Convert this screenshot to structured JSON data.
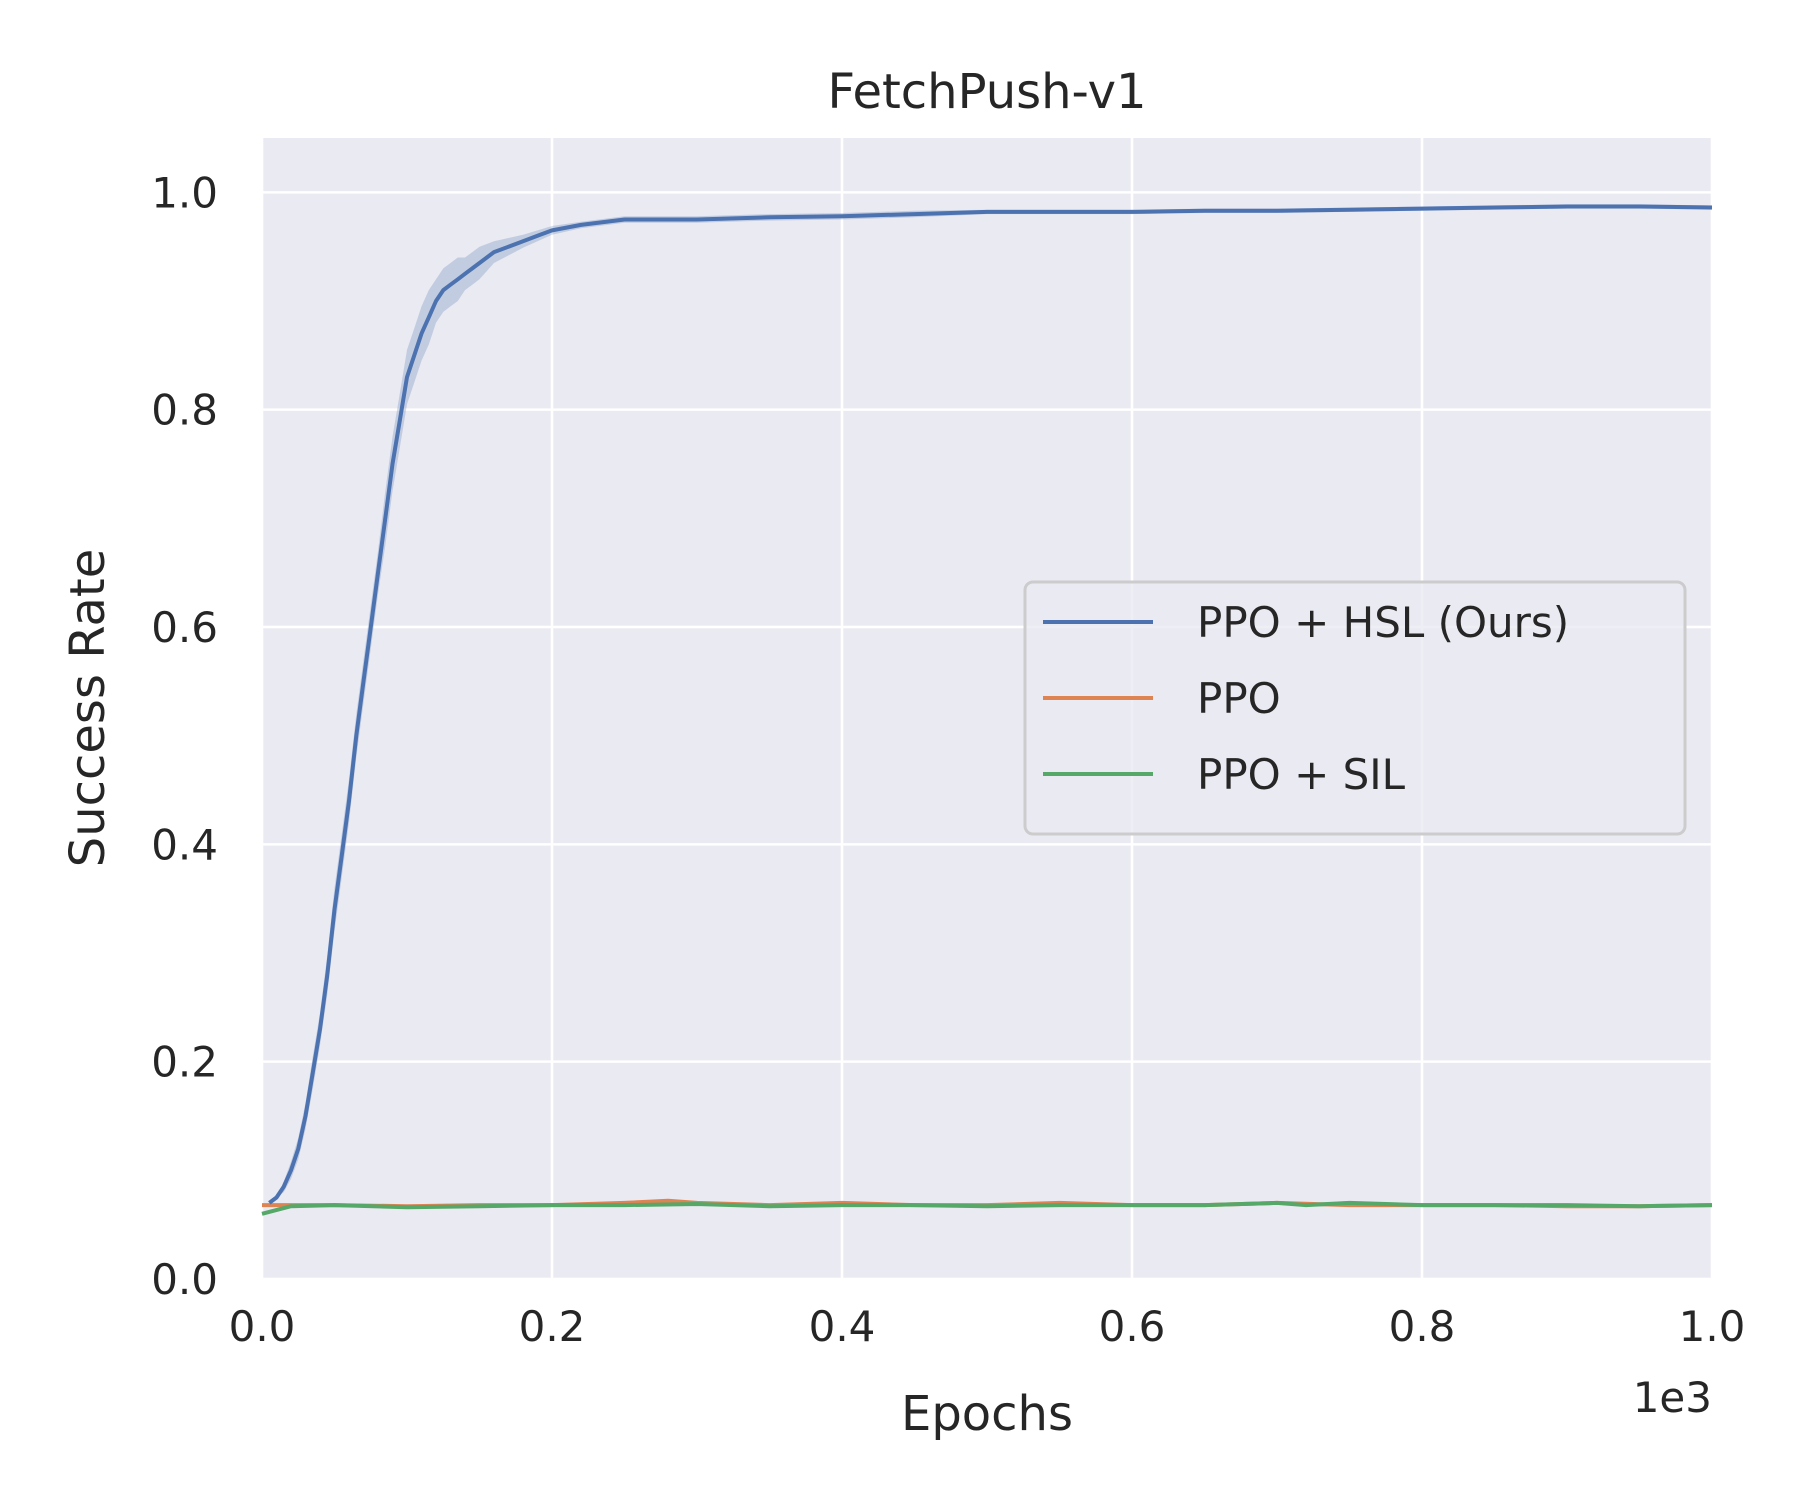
{
  "chart_data": {
    "type": "line",
    "title": "FetchPush-v1",
    "xlabel": "Epochs",
    "ylabel": "Success Rate",
    "x_offset_label": "1e3",
    "xlim": [
      0,
      1.0
    ],
    "ylim": [
      0,
      1.05
    ],
    "x_ticks": [
      0.0,
      0.2,
      0.4,
      0.6,
      0.8,
      1.0
    ],
    "x_tick_labels": [
      "0.0",
      "0.2",
      "0.4",
      "0.6",
      "0.8",
      "1.0"
    ],
    "y_ticks": [
      0.0,
      0.2,
      0.4,
      0.6,
      0.8,
      1.0
    ],
    "y_tick_labels": [
      "0.0",
      "0.2",
      "0.4",
      "0.6",
      "0.8",
      "1.0"
    ],
    "grid": true,
    "legend_position": "center-right",
    "background_color": "#eaeaf2",
    "series": [
      {
        "name": "PPO + HSL (Ours)",
        "color": "#4c72b0",
        "x": [
          0.005,
          0.01,
          0.015,
          0.02,
          0.025,
          0.03,
          0.035,
          0.04,
          0.045,
          0.05,
          0.055,
          0.06,
          0.065,
          0.07,
          0.075,
          0.08,
          0.085,
          0.09,
          0.095,
          0.1,
          0.105,
          0.11,
          0.115,
          0.12,
          0.125,
          0.13,
          0.135,
          0.14,
          0.145,
          0.15,
          0.16,
          0.17,
          0.18,
          0.19,
          0.2,
          0.22,
          0.25,
          0.28,
          0.3,
          0.35,
          0.4,
          0.45,
          0.5,
          0.55,
          0.6,
          0.65,
          0.7,
          0.75,
          0.8,
          0.85,
          0.9,
          0.95,
          1.0
        ],
        "y": [
          0.07,
          0.075,
          0.085,
          0.1,
          0.12,
          0.15,
          0.19,
          0.23,
          0.28,
          0.34,
          0.39,
          0.44,
          0.5,
          0.55,
          0.6,
          0.65,
          0.7,
          0.75,
          0.79,
          0.83,
          0.85,
          0.87,
          0.885,
          0.9,
          0.91,
          0.915,
          0.92,
          0.925,
          0.93,
          0.935,
          0.945,
          0.95,
          0.955,
          0.96,
          0.965,
          0.97,
          0.975,
          0.975,
          0.975,
          0.977,
          0.978,
          0.98,
          0.982,
          0.982,
          0.982,
          0.983,
          0.983,
          0.984,
          0.985,
          0.986,
          0.987,
          0.987,
          0.986
        ],
        "band_halfwidth": [
          0.0,
          0.0,
          0.005,
          0.008,
          0.01,
          0.012,
          0.015,
          0.015,
          0.018,
          0.02,
          0.02,
          0.02,
          0.02,
          0.02,
          0.02,
          0.02,
          0.025,
          0.025,
          0.025,
          0.025,
          0.025,
          0.025,
          0.025,
          0.02,
          0.02,
          0.02,
          0.02,
          0.015,
          0.015,
          0.015,
          0.01,
          0.008,
          0.006,
          0.005,
          0.004,
          0.003,
          0.003,
          0.003,
          0.003,
          0.003,
          0.003,
          0.003,
          0.002,
          0.002,
          0.002,
          0.002,
          0.002,
          0.002,
          0.002,
          0.002,
          0.002,
          0.002,
          0.002
        ]
      },
      {
        "name": "PPO",
        "color": "#dd8452",
        "x": [
          0.0,
          0.05,
          0.1,
          0.15,
          0.2,
          0.25,
          0.28,
          0.3,
          0.35,
          0.4,
          0.45,
          0.5,
          0.55,
          0.6,
          0.65,
          0.7,
          0.75,
          0.8,
          0.85,
          0.9,
          0.95,
          1.0
        ],
        "y": [
          0.068,
          0.068,
          0.067,
          0.068,
          0.068,
          0.07,
          0.072,
          0.07,
          0.068,
          0.07,
          0.068,
          0.068,
          0.07,
          0.068,
          0.068,
          0.07,
          0.068,
          0.068,
          0.068,
          0.067,
          0.067,
          0.068
        ]
      },
      {
        "name": "PPO + SIL",
        "color": "#55a868",
        "x": [
          0.0,
          0.02,
          0.05,
          0.1,
          0.15,
          0.2,
          0.25,
          0.3,
          0.35,
          0.4,
          0.45,
          0.5,
          0.55,
          0.6,
          0.65,
          0.7,
          0.72,
          0.75,
          0.8,
          0.85,
          0.9,
          0.95,
          1.0
        ],
        "y": [
          0.06,
          0.067,
          0.068,
          0.066,
          0.067,
          0.068,
          0.068,
          0.069,
          0.067,
          0.068,
          0.068,
          0.067,
          0.068,
          0.068,
          0.068,
          0.07,
          0.068,
          0.07,
          0.068,
          0.068,
          0.068,
          0.067,
          0.068
        ]
      }
    ]
  }
}
